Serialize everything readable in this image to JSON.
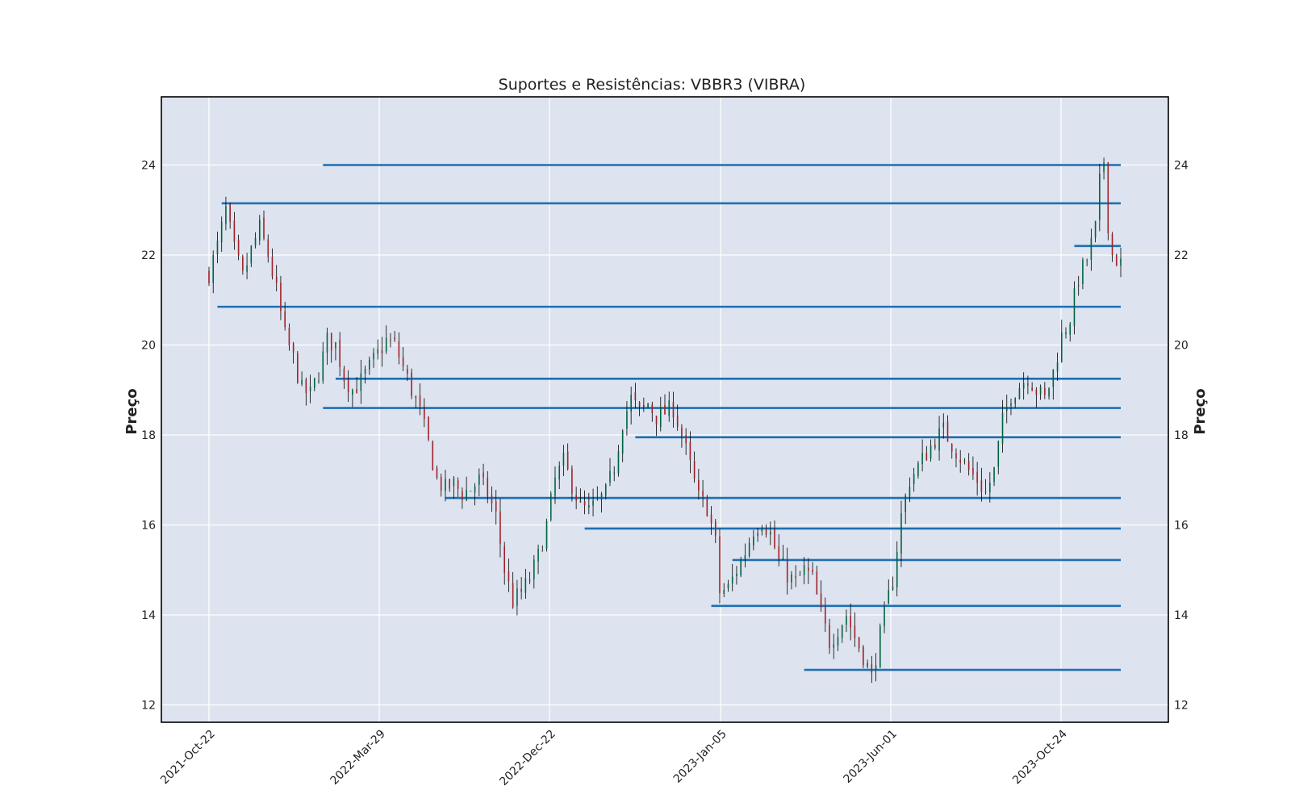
{
  "chart_data": {
    "type": "candlestick",
    "title": "Suportes e Resistências: VBBR3 (VIBRA)",
    "ylabel": "Preço",
    "xlabel": "",
    "ylim": [
      11.5,
      25.5
    ],
    "y_ticks": [
      12,
      14,
      16,
      18,
      20,
      22,
      24
    ],
    "x_tick_labels": [
      "2021-Oct-22",
      "2022-Mar-29",
      "2022-Dec-22",
      "2023-Jan-05",
      "2023-Jun-01",
      "2023-Oct-24"
    ],
    "grid": true,
    "colors": {
      "plot_background": "#dde3ef",
      "grid": "#ffffff",
      "up_candle": "#006340",
      "down_candle": "#a02128",
      "wick": "#000000",
      "levels": "#1f6fb0"
    },
    "levels": [
      {
        "price": 24.0,
        "start_bar": 27
      },
      {
        "price": 23.15,
        "start_bar": 3
      },
      {
        "price": 22.2,
        "start_bar": 205
      },
      {
        "price": 20.85,
        "start_bar": 2
      },
      {
        "price": 19.25,
        "start_bar": 30
      },
      {
        "price": 18.6,
        "start_bar": 27
      },
      {
        "price": 17.95,
        "start_bar": 101
      },
      {
        "price": 16.6,
        "start_bar": 56
      },
      {
        "price": 15.92,
        "start_bar": 89
      },
      {
        "price": 15.22,
        "start_bar": 124
      },
      {
        "price": 14.2,
        "start_bar": 119
      },
      {
        "price": 12.78,
        "start_bar": 141
      }
    ],
    "price_path": [
      [
        0,
        21.6
      ],
      [
        2,
        22.2
      ],
      [
        4,
        23.0
      ],
      [
        6,
        22.1
      ],
      [
        8,
        21.5
      ],
      [
        10,
        22.1
      ],
      [
        12,
        22.6
      ],
      [
        14,
        22.0
      ],
      [
        16,
        21.2
      ],
      [
        18,
        20.2
      ],
      [
        20,
        19.7
      ],
      [
        22,
        19.0
      ],
      [
        24,
        18.9
      ],
      [
        26,
        19.4
      ],
      [
        28,
        20.1
      ],
      [
        30,
        20.0
      ],
      [
        32,
        19.3
      ],
      [
        34,
        19.0
      ],
      [
        36,
        19.2
      ],
      [
        38,
        19.5
      ],
      [
        40,
        19.8
      ],
      [
        42,
        20.1
      ],
      [
        44,
        20.0
      ],
      [
        46,
        19.5
      ],
      [
        48,
        19.0
      ],
      [
        50,
        18.5
      ],
      [
        52,
        17.8
      ],
      [
        54,
        17.0
      ],
      [
        56,
        16.8
      ],
      [
        58,
        16.9
      ],
      [
        60,
        16.7
      ],
      [
        62,
        16.8
      ],
      [
        64,
        17.0
      ],
      [
        66,
        16.7
      ],
      [
        68,
        16.2
      ],
      [
        70,
        15.0
      ],
      [
        72,
        14.3
      ],
      [
        74,
        14.5
      ],
      [
        76,
        14.8
      ],
      [
        78,
        15.3
      ],
      [
        80,
        16.0
      ],
      [
        82,
        17.0
      ],
      [
        84,
        17.4
      ],
      [
        86,
        16.9
      ],
      [
        88,
        16.4
      ],
      [
        90,
        16.3
      ],
      [
        92,
        16.5
      ],
      [
        94,
        16.7
      ],
      [
        96,
        17.3
      ],
      [
        98,
        18.3
      ],
      [
        100,
        18.8
      ],
      [
        102,
        18.5
      ],
      [
        104,
        18.7
      ],
      [
        106,
        18.4
      ],
      [
        108,
        18.5
      ],
      [
        110,
        18.6
      ],
      [
        112,
        18.0
      ],
      [
        114,
        17.3
      ],
      [
        116,
        16.6
      ],
      [
        118,
        16.4
      ],
      [
        120,
        15.6
      ],
      [
        121,
        14.5
      ],
      [
        123,
        14.6
      ],
      [
        125,
        15.0
      ],
      [
        127,
        15.4
      ],
      [
        129,
        15.9
      ],
      [
        131,
        16.1
      ],
      [
        133,
        15.8
      ],
      [
        135,
        15.2
      ],
      [
        137,
        14.9
      ],
      [
        139,
        14.7
      ],
      [
        141,
        15.0
      ],
      [
        143,
        14.8
      ],
      [
        145,
        14.0
      ],
      [
        147,
        13.4
      ],
      [
        149,
        13.7
      ],
      [
        151,
        14.0
      ],
      [
        153,
        13.5
      ],
      [
        155,
        13.1
      ],
      [
        157,
        12.6
      ],
      [
        158,
        13.1
      ],
      [
        160,
        14.0
      ],
      [
        162,
        14.8
      ],
      [
        164,
        16.2
      ],
      [
        166,
        17.0
      ],
      [
        168,
        17.3
      ],
      [
        170,
        17.6
      ],
      [
        172,
        17.9
      ],
      [
        174,
        18.1
      ],
      [
        176,
        17.8
      ],
      [
        178,
        17.5
      ],
      [
        180,
        17.2
      ],
      [
        182,
        17.0
      ],
      [
        184,
        16.7
      ],
      [
        186,
        17.2
      ],
      [
        188,
        18.3
      ],
      [
        190,
        18.9
      ],
      [
        192,
        19.1
      ],
      [
        194,
        19.3
      ],
      [
        196,
        19.0
      ],
      [
        198,
        18.8
      ],
      [
        200,
        19.4
      ],
      [
        202,
        20.2
      ],
      [
        204,
        20.6
      ],
      [
        206,
        21.5
      ],
      [
        208,
        21.9
      ],
      [
        210,
        22.6
      ],
      [
        211,
        23.6
      ],
      [
        212,
        24.1
      ],
      [
        213,
        22.7
      ],
      [
        214,
        22.0
      ],
      [
        216,
        21.8
      ]
    ]
  }
}
